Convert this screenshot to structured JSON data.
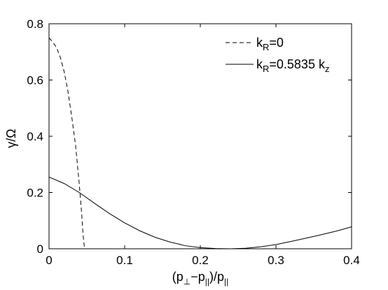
{
  "chart_data": {
    "type": "line",
    "xlim": [
      0,
      0.4
    ],
    "ylim": [
      0,
      0.8
    ],
    "xticks": [
      "0",
      "0.1",
      "0.2",
      "0.3",
      "0.4"
    ],
    "yticks": [
      "0",
      "0.2",
      "0.4",
      "0.6",
      "0.8"
    ],
    "xlabel": {
      "open": "(p",
      "sub1": "⊥",
      "mid": "−p",
      "sub2": "||",
      "close": ")/p",
      "sub3": "||"
    },
    "ylabel": "γ/Ω",
    "grid": false,
    "legend_position": "top-right",
    "series": [
      {
        "legend_main": "k",
        "legend_sub": "R",
        "legend_rest": "=0",
        "style": "dashed",
        "color": "#000000",
        "x": [
          0,
          0.005,
          0.01,
          0.015,
          0.02,
          0.025,
          0.03,
          0.035,
          0.04,
          0.043,
          0.045,
          0.047
        ],
        "y": [
          0.75,
          0.735,
          0.715,
          0.68,
          0.63,
          0.56,
          0.47,
          0.37,
          0.23,
          0.13,
          0.05,
          0.0
        ]
      },
      {
        "legend_main": "k",
        "legend_sub": "R",
        "legend_rest": "=0.5835 k",
        "legend_sub2": "z",
        "style": "solid",
        "color": "#000000",
        "x": [
          0,
          0.02,
          0.04,
          0.06,
          0.08,
          0.1,
          0.12,
          0.14,
          0.16,
          0.18,
          0.2,
          0.22,
          0.24,
          0.26,
          0.28,
          0.3,
          0.32,
          0.34,
          0.36,
          0.38,
          0.4
        ],
        "y": [
          0.255,
          0.232,
          0.2,
          0.162,
          0.125,
          0.092,
          0.064,
          0.041,
          0.024,
          0.011,
          0.004,
          0.001,
          0.0,
          0.002,
          0.007,
          0.015,
          0.026,
          0.038,
          0.05,
          0.063,
          0.078
        ]
      }
    ]
  }
}
